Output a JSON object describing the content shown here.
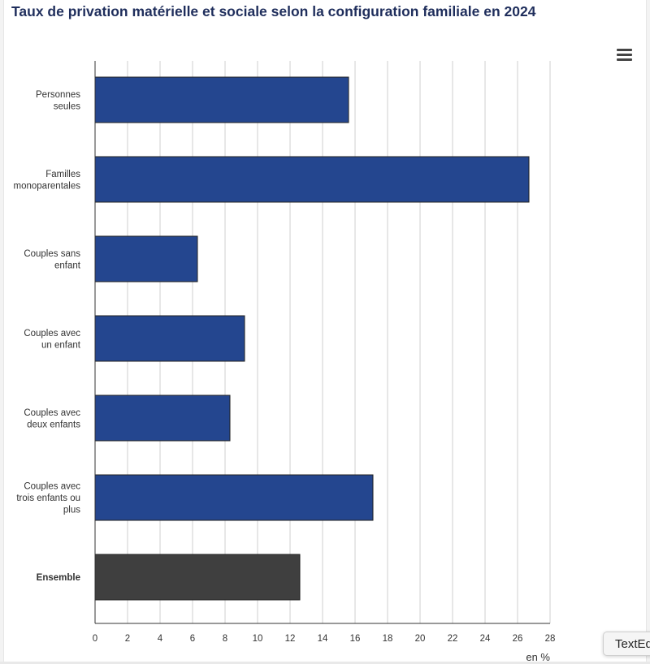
{
  "title": "Taux de privation matérielle et sociale selon la configuration familiale en 2024",
  "menu": {
    "icon": "hamburger-menu-icon"
  },
  "popup": {
    "label": "TextEd"
  },
  "chart_data": {
    "type": "bar",
    "orientation": "horizontal",
    "categories": [
      [
        "Personnes",
        "seules"
      ],
      [
        "Familles",
        "monoparentales"
      ],
      [
        "Couples sans",
        "enfant"
      ],
      [
        "Couples avec",
        "un enfant"
      ],
      [
        "Couples avec",
        "deux enfants"
      ],
      [
        "Couples avec",
        "trois enfants ou",
        "plus"
      ],
      [
        "Ensemble"
      ]
    ],
    "values": [
      15.6,
      26.7,
      6.3,
      9.2,
      8.3,
      17.1,
      12.6
    ],
    "highlight_index": 6,
    "colors": {
      "bar": "#24468f",
      "highlight": "#3f3f3f",
      "grid": "#cfcfcf",
      "axis": "#333333"
    },
    "xlim": [
      0,
      28
    ],
    "xticks": [
      0,
      2,
      4,
      6,
      8,
      10,
      12,
      14,
      16,
      18,
      20,
      22,
      24,
      26,
      28
    ],
    "unit": "en %",
    "grid": true
  }
}
